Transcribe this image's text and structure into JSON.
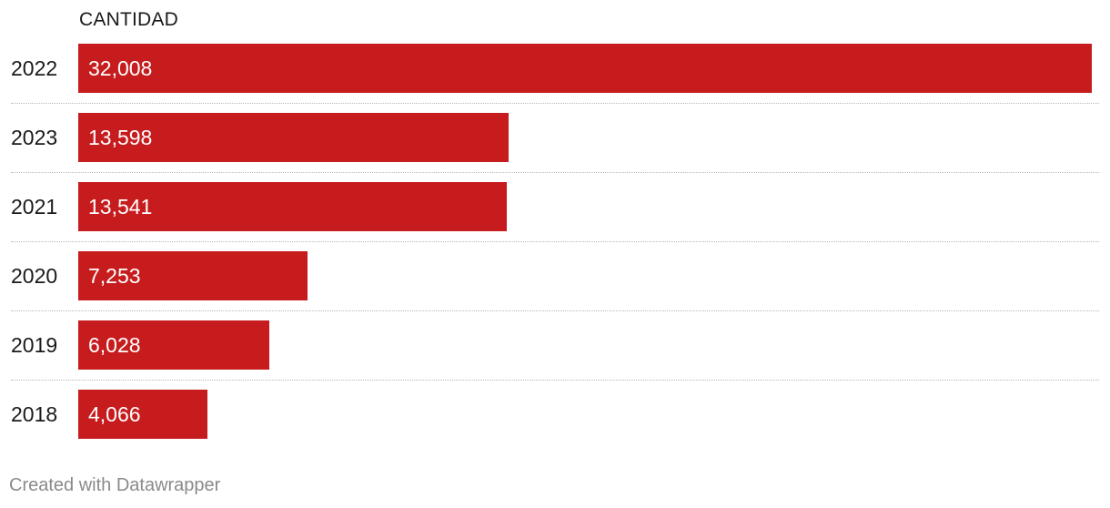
{
  "chart_data": {
    "type": "bar",
    "orientation": "horizontal",
    "column_header": "CANTIDAD",
    "categories": [
      "2022",
      "2023",
      "2021",
      "2020",
      "2019",
      "2018"
    ],
    "values": [
      32008,
      13598,
      13541,
      7253,
      6028,
      4066
    ],
    "value_labels": [
      "32,008",
      "13,598",
      "13,541",
      "7,253",
      "6,028",
      "4,066"
    ],
    "xlim": [
      0,
      32008
    ],
    "bar_color": "#c71c1e",
    "grid": false
  },
  "footer": {
    "credit": "Created with Datawrapper"
  }
}
